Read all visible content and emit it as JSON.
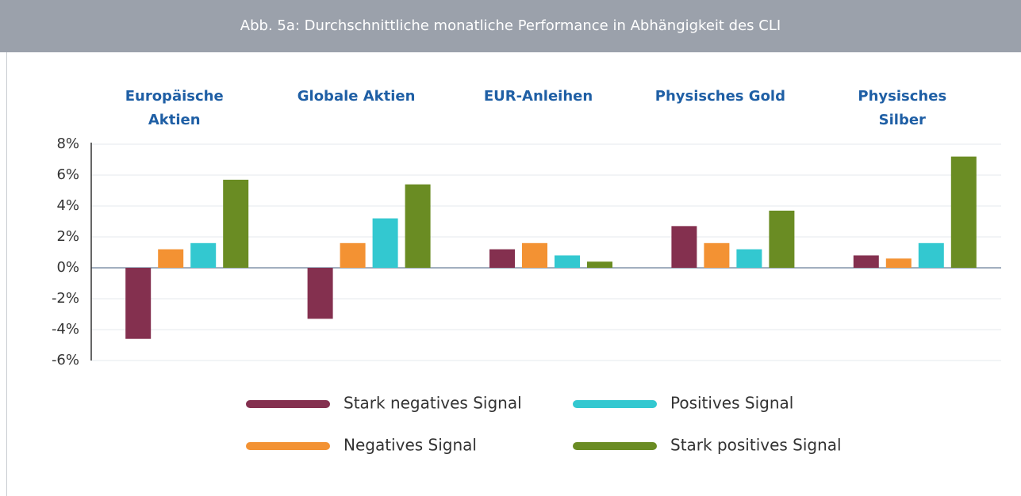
{
  "chart_data": {
    "type": "bar",
    "title": "Abb. 5a: Durchschnittliche monatliche Performance in Abhängigkeit des CLI",
    "categories": [
      "Europäische Aktien",
      "Globale Aktien",
      "EUR-Anleihen",
      "Physisches Gold",
      "Physisches Silber"
    ],
    "series": [
      {
        "name": "Stark negatives Signal",
        "color": "#84304f",
        "values": [
          -4.6,
          -3.3,
          1.2,
          2.7,
          0.8
        ]
      },
      {
        "name": "Negatives Signal",
        "color": "#f39233",
        "values": [
          1.2,
          1.6,
          1.6,
          1.6,
          0.6
        ]
      },
      {
        "name": "Positives Signal",
        "color": "#33c8d0",
        "values": [
          1.6,
          3.2,
          0.8,
          1.2,
          1.6
        ]
      },
      {
        "name": "Stark positives Signal",
        "color": "#6a8c23",
        "values": [
          5.7,
          5.4,
          0.4,
          3.7,
          7.2
        ]
      }
    ],
    "ylim": [
      -6,
      8
    ],
    "yticks": [
      {
        "value": -6,
        "label": "-6%"
      },
      {
        "value": -4,
        "label": "-4%"
      },
      {
        "value": -2,
        "label": "-2%"
      },
      {
        "value": 0,
        "label": "0%"
      },
      {
        "value": 2,
        "label": "2%"
      },
      {
        "value": 4,
        "label": "4%"
      },
      {
        "value": 6,
        "label": "6%"
      },
      {
        "value": 8,
        "label": "8%"
      }
    ],
    "grid": true
  }
}
